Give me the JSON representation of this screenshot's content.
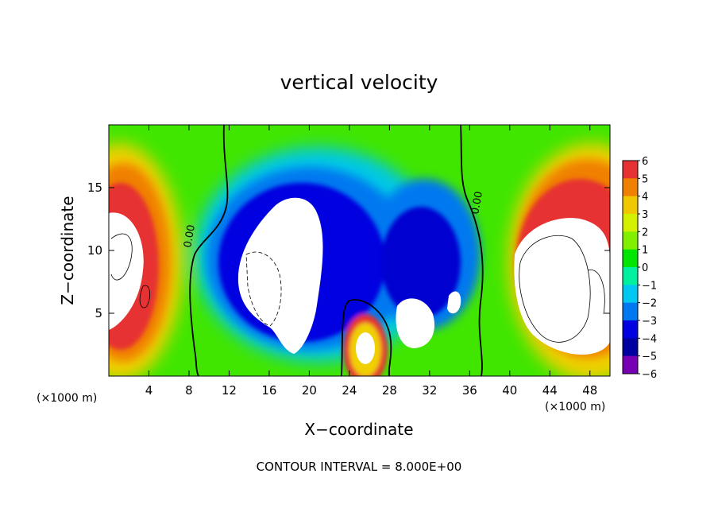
{
  "chart_data": {
    "type": "heatmap",
    "title": "vertical velocity",
    "xlabel": "X−coordinate",
    "ylabel": "Z−coordinate",
    "x_unit": "(×1000 m)",
    "z_unit": "(×1000 m)",
    "xlim": [
      0,
      50
    ],
    "ylim": [
      0,
      20
    ],
    "x_ticks": [
      "4",
      "8",
      "12",
      "16",
      "20",
      "24",
      "28",
      "32",
      "36",
      "40",
      "44",
      "48"
    ],
    "y_ticks": [
      "5",
      "10",
      "15"
    ],
    "contour_interval_text": "CONTOUR INTERVAL = 8.000E+00",
    "contour_label": "0.00",
    "colorbar": {
      "levels": [
        "6",
        "5",
        "4",
        "3",
        "2",
        "1",
        "0",
        "−1",
        "−2",
        "−3",
        "−4",
        "−5",
        "−6"
      ],
      "range": [
        -6,
        6
      ],
      "colors": [
        "#f0a0a0",
        "#e63232",
        "#f08000",
        "#f0c800",
        "#d2f000",
        "#80f000",
        "#00e600",
        "#00f0a0",
        "#00c8f0",
        "#0078f0",
        "#0000e0",
        "#0000a0",
        "#7800b4"
      ]
    }
  }
}
